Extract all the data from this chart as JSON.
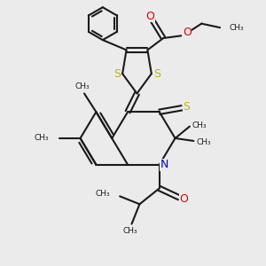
{
  "background_color": "#ebebeb",
  "bond_color": "#1a1a1a",
  "sulfur_color": "#b8b800",
  "nitrogen_color": "#0000cc",
  "oxygen_color": "#dd0000",
  "line_width": 1.5,
  "figsize": [
    3.0,
    3.0
  ],
  "dpi": 100,
  "xlim": [
    0,
    10
  ],
  "ylim": [
    0,
    10
  ]
}
